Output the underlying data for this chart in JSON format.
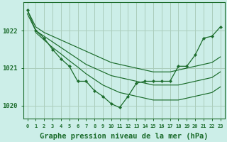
{
  "background_color": "#cceee8",
  "grid_color": "#aaccbb",
  "line_color": "#1a6b2a",
  "xlabel": "Graphe pression niveau de la mer (hPa)",
  "xlabel_fontsize": 7.5,
  "xlim": [
    -0.5,
    23.5
  ],
  "ylim": [
    1019.65,
    1022.75
  ],
  "yticks": [
    1020,
    1021,
    1022
  ],
  "xticks": [
    0,
    1,
    2,
    3,
    4,
    5,
    6,
    7,
    8,
    9,
    10,
    11,
    12,
    13,
    14,
    15,
    16,
    17,
    18,
    19,
    20,
    21,
    22,
    23
  ],
  "main_x": [
    0,
    1,
    2,
    3,
    4,
    5,
    6,
    7,
    8,
    9,
    10,
    11,
    12,
    13,
    14,
    15,
    16,
    17,
    18,
    19,
    20,
    21,
    22,
    23
  ],
  "main_y": [
    1022.55,
    1022.0,
    1021.8,
    1021.5,
    1021.25,
    1021.05,
    1020.65,
    1020.65,
    1020.4,
    1020.25,
    1020.05,
    1019.95,
    1020.25,
    1020.6,
    1020.65,
    1020.65,
    1020.65,
    1020.65,
    1021.05,
    1021.05,
    1021.35,
    1021.8,
    1021.85,
    1022.1
  ],
  "smooth_lines": [
    {
      "x": [
        0,
        1,
        2,
        3,
        4,
        5,
        6,
        7,
        8,
        9,
        10,
        11,
        12,
        13,
        14,
        15,
        16,
        17,
        18,
        19,
        20,
        21,
        22,
        23
      ],
      "y": [
        1022.55,
        1022.1,
        1021.95,
        1021.85,
        1021.75,
        1021.65,
        1021.55,
        1021.45,
        1021.35,
        1021.25,
        1021.15,
        1021.1,
        1021.05,
        1021.0,
        1020.95,
        1020.9,
        1020.9,
        1020.9,
        1020.95,
        1021.0,
        1021.05,
        1021.1,
        1021.15,
        1021.3
      ]
    },
    {
      "x": [
        0,
        1,
        2,
        3,
        4,
        5,
        6,
        7,
        8,
        9,
        10,
        11,
        12,
        13,
        14,
        15,
        16,
        17,
        18,
        19,
        20,
        21,
        22,
        23
      ],
      "y": [
        1022.45,
        1022.0,
        1021.85,
        1021.7,
        1021.55,
        1021.4,
        1021.25,
        1021.1,
        1021.0,
        1020.9,
        1020.8,
        1020.75,
        1020.7,
        1020.65,
        1020.6,
        1020.55,
        1020.55,
        1020.55,
        1020.55,
        1020.6,
        1020.65,
        1020.7,
        1020.75,
        1020.9
      ]
    },
    {
      "x": [
        1,
        2,
        3,
        4,
        5,
        6,
        7,
        8,
        9,
        10,
        11,
        12,
        13,
        14,
        15,
        16,
        17,
        18,
        19,
        20,
        21,
        22,
        23
      ],
      "y": [
        1021.95,
        1021.75,
        1021.55,
        1021.38,
        1021.2,
        1021.03,
        1020.85,
        1020.7,
        1020.55,
        1020.45,
        1020.35,
        1020.3,
        1020.25,
        1020.2,
        1020.15,
        1020.15,
        1020.15,
        1020.15,
        1020.2,
        1020.25,
        1020.3,
        1020.35,
        1020.5
      ]
    }
  ]
}
